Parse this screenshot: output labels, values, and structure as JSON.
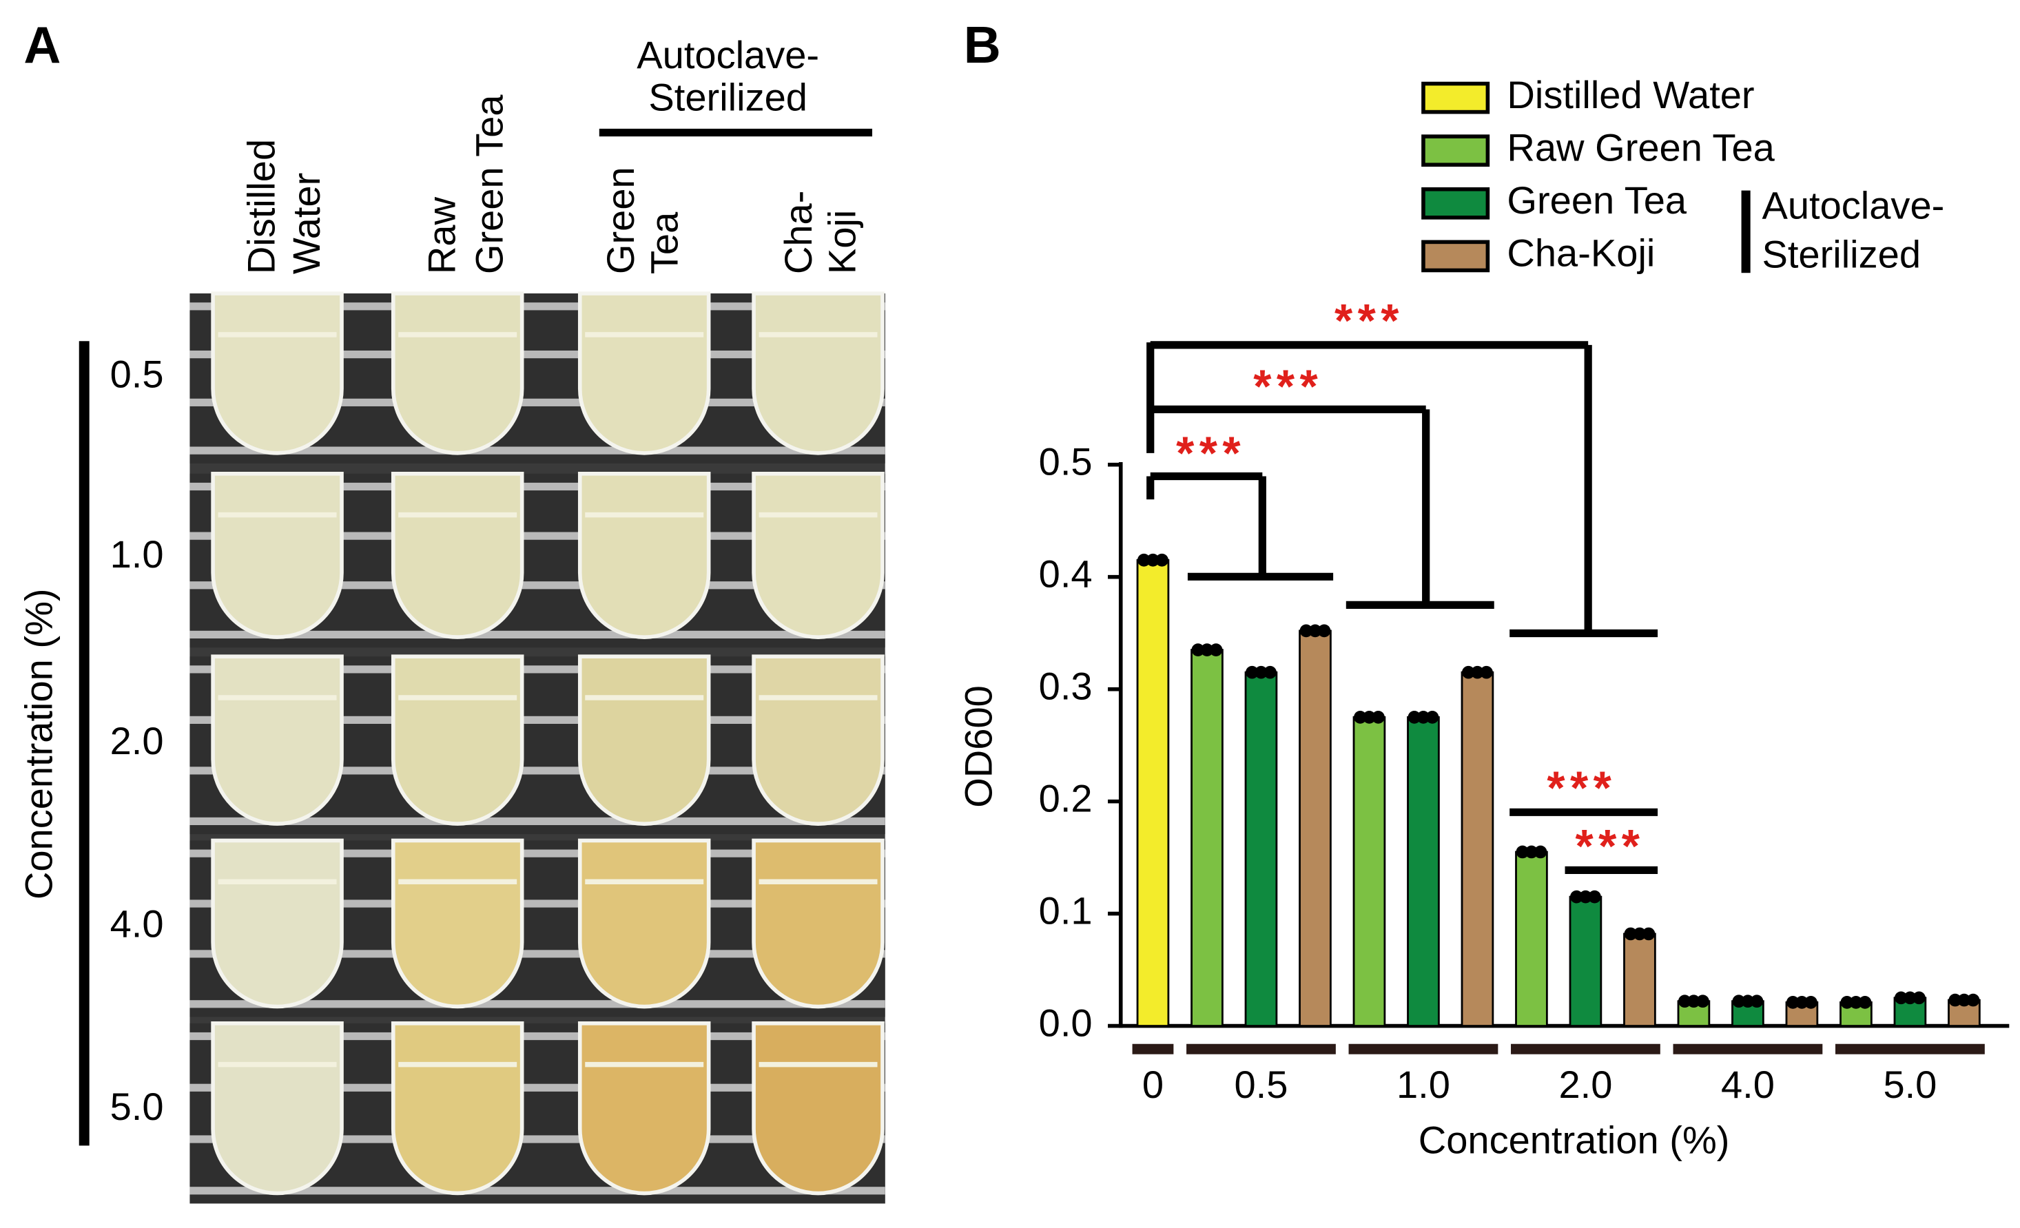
{
  "panels": {
    "A": "A",
    "B": "B"
  },
  "photo": {
    "columns": [
      [
        "Distilled",
        "Water"
      ],
      [
        "Raw",
        "Green Tea"
      ],
      [
        "Green",
        "Tea"
      ],
      [
        "Cha-",
        "Koji"
      ]
    ],
    "group_label": [
      "Autoclave-",
      "Sterilized"
    ],
    "rows": [
      "0.5",
      "1.0",
      "2.0",
      "4.0",
      "5.0"
    ],
    "row_axis_label": "Concentration (%)"
  },
  "chart_data": {
    "type": "bar",
    "ylabel": "OD600",
    "xlabel": "Concentration (%)",
    "categories": [
      "0",
      "0.5",
      "1.0",
      "2.0",
      "4.0",
      "5.0"
    ],
    "series": [
      {
        "name": "Distilled Water",
        "color": "#f3ec2b",
        "values": [
          0.415,
          null,
          null,
          null,
          null,
          null
        ]
      },
      {
        "name": "Raw Green Tea",
        "color": "#7cc143",
        "values": [
          null,
          0.335,
          0.275,
          0.155,
          0.022,
          0.021
        ]
      },
      {
        "name": "Green Tea",
        "color": "#0f8a3f",
        "values": [
          null,
          0.315,
          0.275,
          0.115,
          0.022,
          0.025
        ]
      },
      {
        "name": "Cha-Koji",
        "color": "#b6895b",
        "values": [
          null,
          0.352,
          0.315,
          0.082,
          0.021,
          0.023
        ]
      }
    ],
    "legend_group_label": [
      "Autoclave-",
      "Sterilized"
    ],
    "annotations": [
      "***",
      "***",
      "***",
      "***",
      "***"
    ],
    "ylim": [
      0,
      0.5
    ],
    "yticks": [
      {
        "value": 0,
        "label": "0.0"
      },
      0.1,
      0.2,
      0.3,
      0.4,
      0.5
    ]
  }
}
